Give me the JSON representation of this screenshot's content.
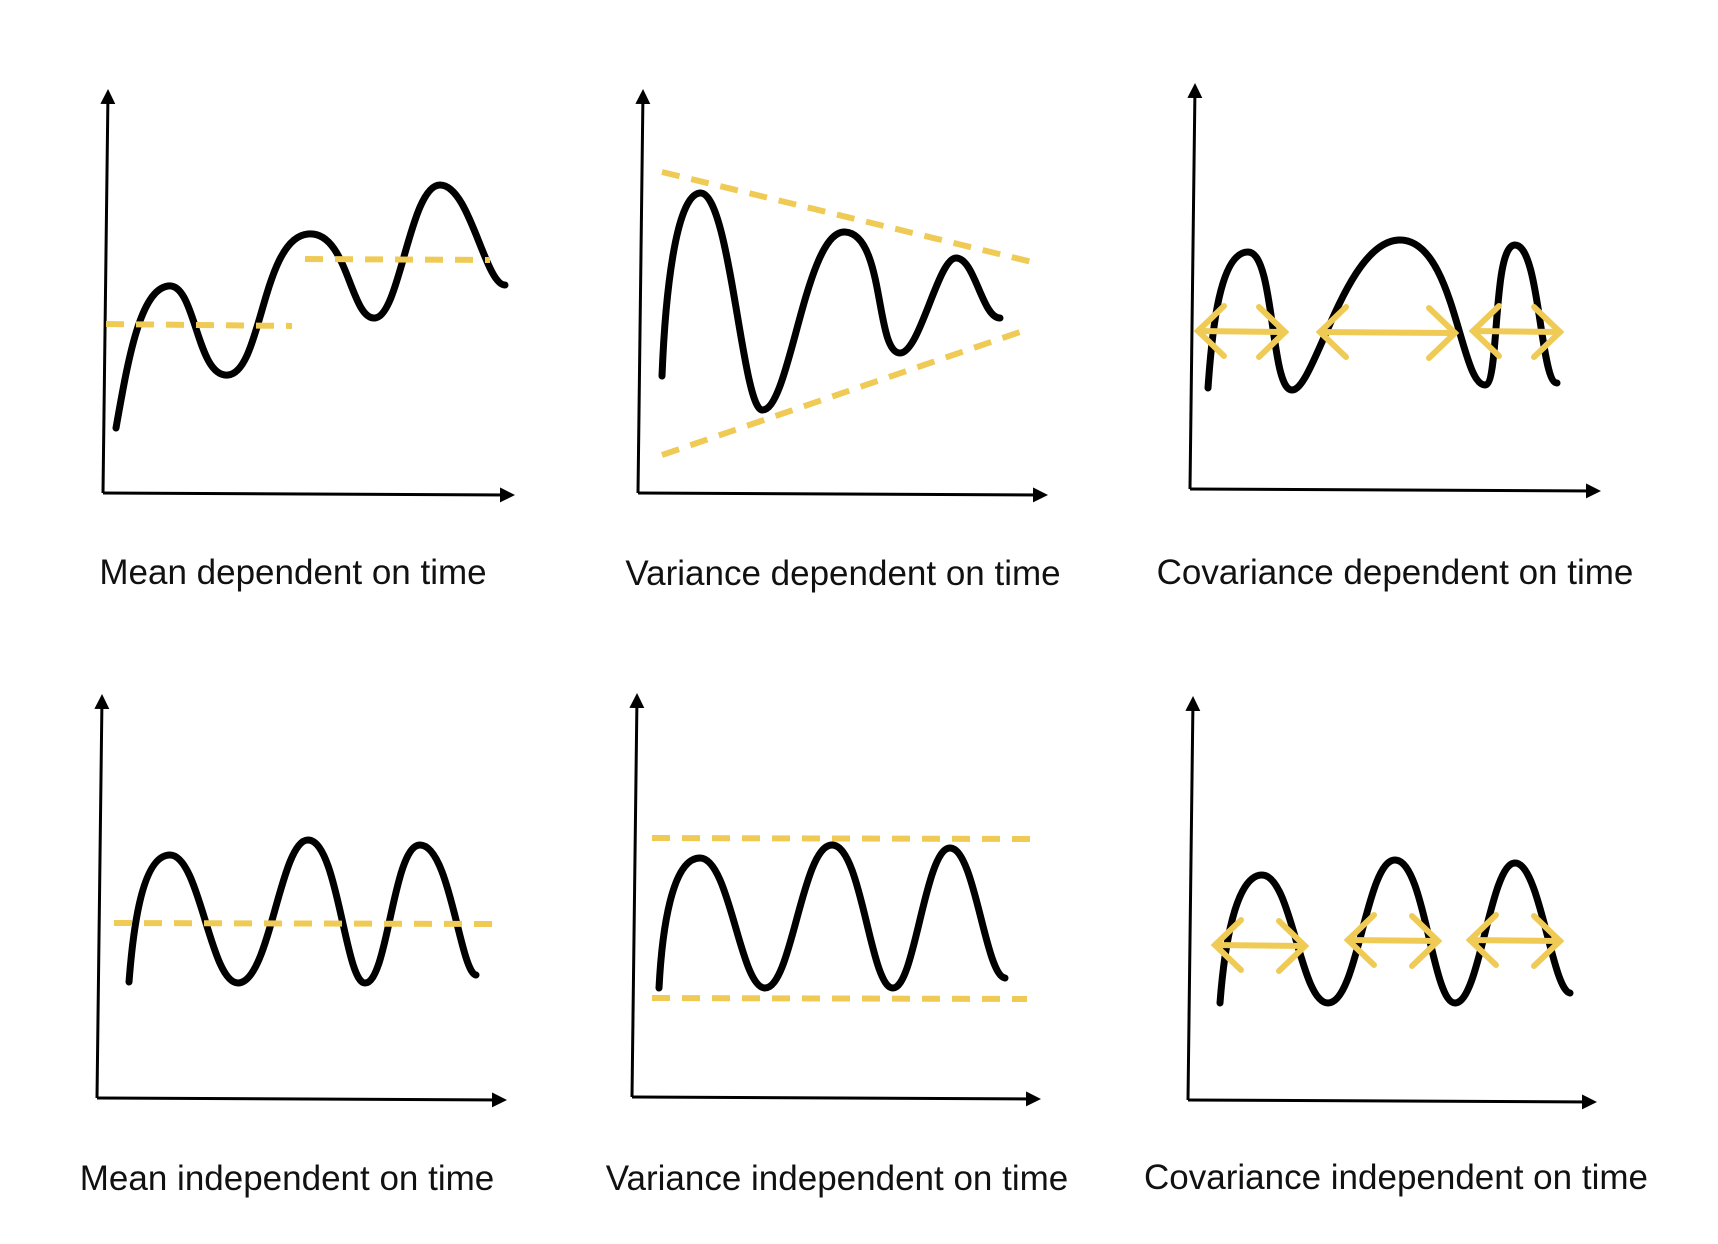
{
  "colors": {
    "curve": "#000000",
    "accent": "#EFCB56",
    "axis": "#000000"
  },
  "panels": [
    {
      "id": "mean-dependent",
      "caption": "Mean dependent on time"
    },
    {
      "id": "variance-dependent",
      "caption": "Variance dependent on time"
    },
    {
      "id": "covariance-dependent",
      "caption": "Covariance dependent on time"
    },
    {
      "id": "mean-independent",
      "caption": "Mean independent on time"
    },
    {
      "id": "variance-independent",
      "caption": "Variance independent on time"
    },
    {
      "id": "covariance-independent",
      "caption": "Covariance independent on time"
    }
  ]
}
